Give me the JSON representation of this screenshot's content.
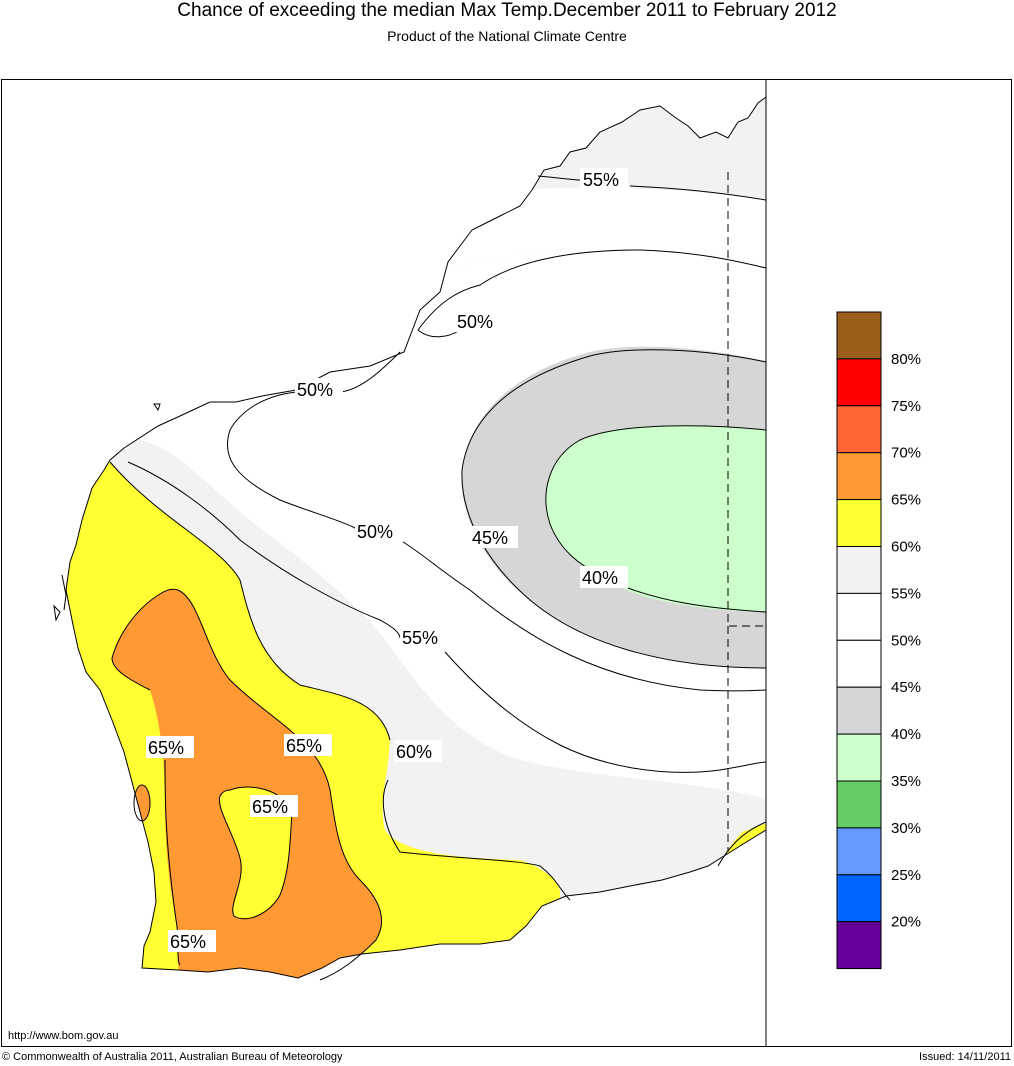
{
  "header": {
    "title": "Chance of exceeding the median Max Temp.December 2011 to February 2012",
    "subtitle": "Product of the National Climate Centre"
  },
  "map": {
    "contour_labels": [
      "55%",
      "50%",
      "50%",
      "50%",
      "45%",
      "40%",
      "55%",
      "65%",
      "65%",
      "60%",
      "65%",
      "65%"
    ]
  },
  "legend": {
    "labels": [
      "80%",
      "75%",
      "70%",
      "65%",
      "60%",
      "55%",
      "50%",
      "45%",
      "40%",
      "35%",
      "30%",
      "25%",
      "20%"
    ],
    "colors": [
      "#9b5f1b",
      "#ff0000",
      "#ff6633",
      "#ff9933",
      "#ffff33",
      "#f2f2f2",
      "#ffffff",
      "#ffffff",
      "#d6d6d6",
      "#ccffcc",
      "#66cc66",
      "#6699ff",
      "#0066ff",
      "#660099"
    ]
  },
  "footer": {
    "url": "http://www.bom.gov.au",
    "copyright": "© Commonwealth of Australia 2011, Australian Bureau of Meteorology",
    "issued": "Issued: 14/11/2011"
  }
}
